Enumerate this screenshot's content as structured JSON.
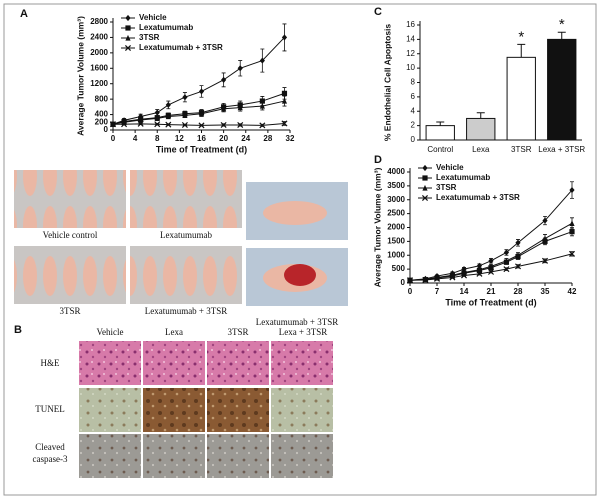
{
  "panel_labels": [
    "A",
    "B",
    "C",
    "D"
  ],
  "photos": {
    "captions": [
      "Vehicle control",
      "Lexatumumab",
      "3TSR",
      "Lexatumumab + 3TSR",
      "Lexatumumab + 3TSR"
    ]
  },
  "micrographs": {
    "columns": [
      "Vehicle",
      "Lexa",
      "3TSR",
      "Lexa + 3TSR"
    ],
    "rows": [
      "H&E",
      "TUNEL",
      "Cleaved",
      "caspase-3"
    ]
  },
  "chart_data": [
    {
      "type": "line",
      "ylabel": "Average Tumor Volume (mm³)",
      "xlabel": "Time of Treatment (d)",
      "xlim": [
        0,
        32
      ],
      "xticks": [
        0,
        4,
        8,
        12,
        16,
        20,
        24,
        28,
        32
      ],
      "ylim": [
        0,
        2800
      ],
      "yticks": [
        0,
        200,
        400,
        800,
        1200,
        1600,
        2000,
        2400,
        2800
      ],
      "legend": "upper left",
      "x": [
        0,
        2,
        5,
        8,
        10,
        13,
        16,
        20,
        23,
        27,
        31
      ],
      "series": [
        {
          "name": "Vehicle",
          "color": "#111",
          "marker": "diamond",
          "values": [
            150,
            250,
            350,
            450,
            650,
            850,
            1000,
            1300,
            1600,
            1800,
            2400
          ],
          "errors": [
            30,
            50,
            60,
            80,
            100,
            120,
            150,
            180,
            200,
            300,
            350
          ]
        },
        {
          "name": "Lexatumumab",
          "color": "#111",
          "marker": "square",
          "values": [
            150,
            220,
            280,
            320,
            380,
            420,
            450,
            600,
            650,
            750,
            950
          ],
          "errors": [
            20,
            30,
            40,
            50,
            60,
            70,
            80,
            90,
            100,
            120,
            150
          ]
        },
        {
          "name": "3TSR",
          "color": "#111",
          "marker": "triangle",
          "values": [
            150,
            200,
            260,
            300,
            350,
            380,
            420,
            550,
            580,
            620,
            750
          ],
          "errors": [
            20,
            30,
            40,
            40,
            50,
            60,
            70,
            80,
            90,
            100,
            130
          ]
        },
        {
          "name": "Lexatumumab + 3TSR",
          "color": "#111",
          "marker": "x",
          "values": [
            150,
            150,
            160,
            150,
            140,
            130,
            120,
            130,
            130,
            120,
            170
          ],
          "errors": [
            20,
            20,
            20,
            20,
            20,
            20,
            20,
            30,
            30,
            30,
            50
          ]
        }
      ]
    },
    {
      "type": "bar",
      "ylabel": "% Endothelial Cell Apoptosis",
      "ylim": [
        0,
        16
      ],
      "yticks": [
        0,
        2,
        4,
        6,
        8,
        10,
        12,
        14,
        16
      ],
      "categories": [
        "Control",
        "Lexa",
        "3TSR",
        "Lexa + 3TSR"
      ],
      "values": [
        2,
        3,
        11.5,
        14
      ],
      "errors": [
        0.5,
        0.8,
        1.8,
        1
      ],
      "colors": [
        "#fff",
        "#ccc",
        "#fff",
        "#111"
      ],
      "annotations": [
        {
          "category": "3TSR",
          "text": "*"
        },
        {
          "category": "Lexa + 3TSR",
          "text": "*"
        }
      ]
    },
    {
      "type": "line",
      "ylabel": "Average Tumor Volume (mm³)",
      "xlabel": "Time of Treatment (d)",
      "xlim": [
        0,
        42
      ],
      "xticks": [
        0,
        7,
        14,
        21,
        28,
        35,
        42
      ],
      "ylim": [
        0,
        4000
      ],
      "yticks": [
        0,
        500,
        1000,
        1500,
        2000,
        2500,
        3000,
        3500,
        4000
      ],
      "legend": "upper left",
      "x": [
        0,
        4,
        7,
        11,
        14,
        18,
        21,
        25,
        28,
        35,
        42
      ],
      "series": [
        {
          "name": "Vehicle",
          "color": "#111",
          "marker": "diamond",
          "values": [
            100,
            150,
            250,
            350,
            500,
            620,
            800,
            1100,
            1450,
            2250,
            3350
          ],
          "errors": [
            20,
            30,
            40,
            50,
            60,
            70,
            80,
            100,
            120,
            150,
            300
          ]
        },
        {
          "name": "Lexatumumab",
          "color": "#111",
          "marker": "square",
          "values": [
            100,
            120,
            180,
            250,
            350,
            450,
            550,
            750,
            950,
            1500,
            1850
          ],
          "errors": [
            20,
            20,
            30,
            40,
            50,
            60,
            70,
            80,
            100,
            120,
            150
          ]
        },
        {
          "name": "3TSR",
          "color": "#111",
          "marker": "triangle",
          "values": [
            100,
            130,
            200,
            280,
            380,
            480,
            600,
            800,
            1000,
            1600,
            2150
          ],
          "errors": [
            20,
            20,
            30,
            40,
            50,
            60,
            70,
            80,
            100,
            150,
            200
          ]
        },
        {
          "name": "Lexatumumab + 3TSR",
          "color": "#111",
          "marker": "x",
          "values": [
            100,
            110,
            150,
            200,
            270,
            330,
            400,
            500,
            600,
            800,
            1050
          ],
          "errors": [
            20,
            20,
            20,
            30,
            30,
            40,
            40,
            50,
            60,
            70,
            80
          ]
        }
      ]
    }
  ]
}
